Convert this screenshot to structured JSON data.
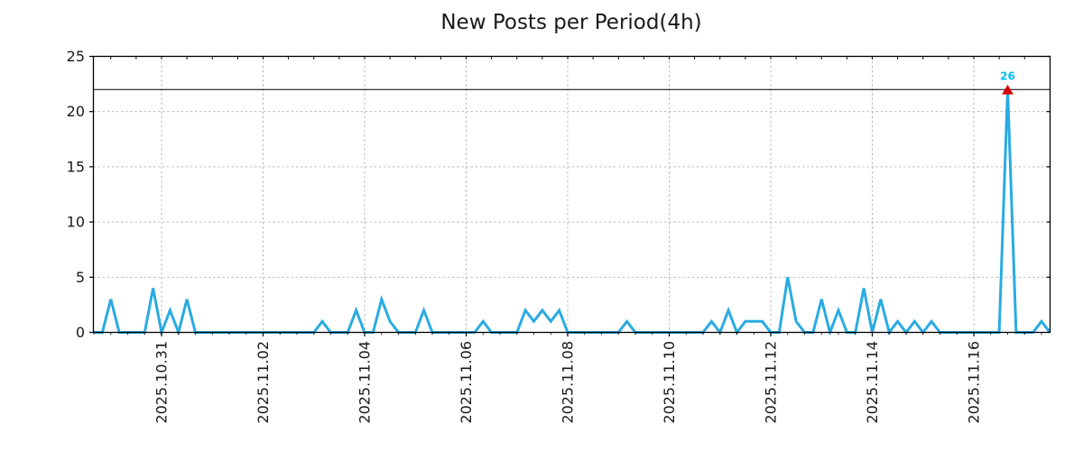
{
  "title": "New Posts per Period(4h)",
  "colors": {
    "line": "#29abe2",
    "marker": "#d60000",
    "annotation_text": "#00bdf2",
    "grid": "#b1b1b1",
    "axis": "#000000",
    "cap_line": "#000000",
    "text": "#1a1a1a",
    "background": "#ffffff"
  },
  "chart_data": {
    "type": "line",
    "title": "New Posts per Period(4h)",
    "x_start": "2025.10.29 16:00",
    "x_interval_hours": 4,
    "values": [
      0,
      0,
      3,
      0,
      0,
      0,
      0,
      4,
      0,
      2,
      0,
      3,
      0,
      0,
      0,
      0,
      0,
      0,
      0,
      0,
      0,
      0,
      0,
      0,
      0,
      0,
      0,
      1,
      0,
      0,
      0,
      2,
      0,
      0,
      3,
      1,
      0,
      0,
      0,
      2,
      0,
      0,
      0,
      0,
      0,
      0,
      1,
      0,
      0,
      0,
      0,
      2,
      1,
      2,
      1,
      2,
      0,
      0,
      0,
      0,
      0,
      0,
      0,
      1,
      0,
      0,
      0,
      0,
      0,
      0,
      0,
      0,
      0,
      1,
      0,
      2,
      0,
      1,
      1,
      1,
      0,
      0,
      5,
      1,
      0,
      0,
      3,
      0,
      2,
      0,
      0,
      4,
      0,
      3,
      0,
      1,
      0,
      1,
      0,
      1,
      0,
      0,
      0,
      0,
      0,
      0,
      0,
      0,
      26,
      0,
      0,
      0,
      1,
      0
    ],
    "x_tick_labels": [
      "2025.10.31",
      "2025.11.02",
      "2025.11.04",
      "2025.11.06",
      "2025.11.08",
      "2025.11.10",
      "2025.11.12",
      "2025.11.14",
      "2025.11.16"
    ],
    "x_tick_interval_days": 2,
    "y_tick_labels": [
      "0",
      "5",
      "10",
      "15",
      "20",
      "25"
    ],
    "y_ticks": [
      0,
      5,
      10,
      15,
      20,
      25
    ],
    "grid_y": [
      5,
      10,
      15,
      20
    ],
    "ylim": [
      0,
      25
    ],
    "grid": true,
    "legend": "none",
    "cap_line_value": 22,
    "max_annotation": {
      "label": "26",
      "value": 26,
      "index": 108,
      "marker": "red-triangle-up"
    }
  }
}
